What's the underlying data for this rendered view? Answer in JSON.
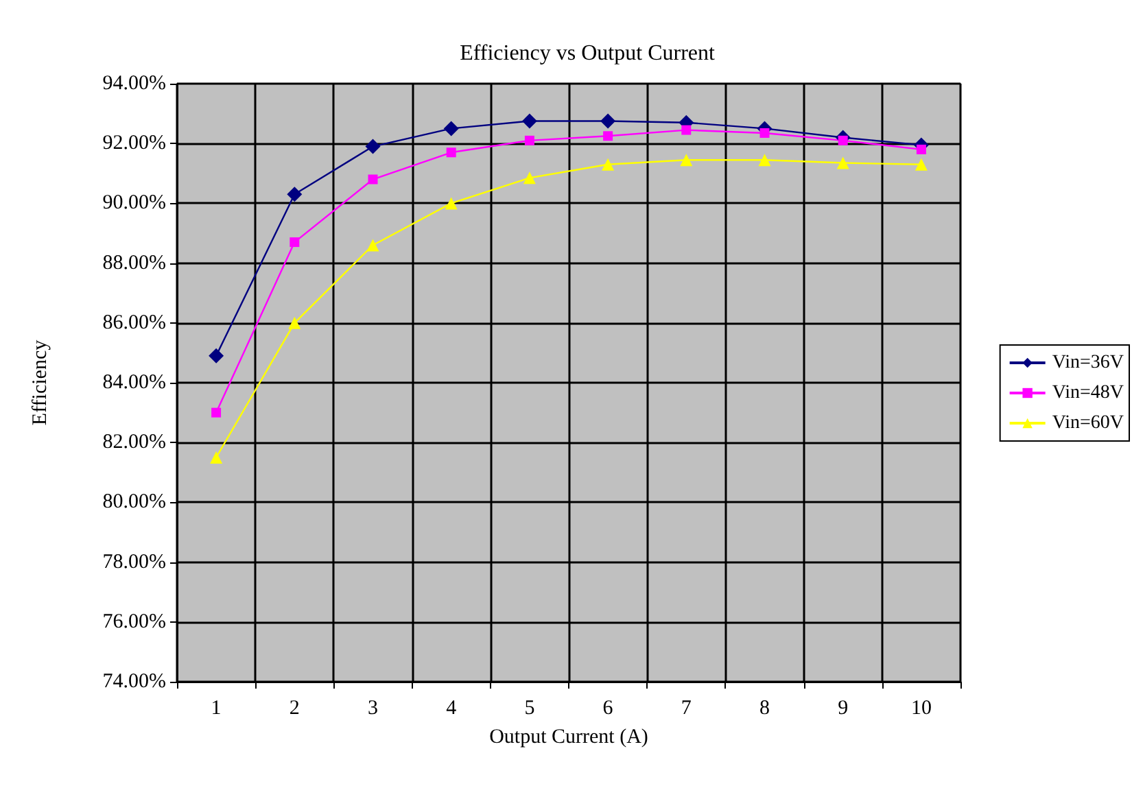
{
  "chart_data": {
    "type": "line",
    "title": "Efficiency vs Output Current",
    "xlabel": "Output Current (A)",
    "ylabel": "Efficiency",
    "categories": [
      "1",
      "2",
      "3",
      "4",
      "5",
      "6",
      "7",
      "8",
      "9",
      "10"
    ],
    "series": [
      {
        "name": "Vin=36V",
        "color": "#000080",
        "marker": "diamond",
        "values": [
          84.9,
          90.3,
          91.9,
          92.5,
          92.75,
          92.75,
          92.7,
          92.5,
          92.2,
          91.95
        ]
      },
      {
        "name": "Vin=48V",
        "color": "#ff00ff",
        "marker": "square",
        "values": [
          83.0,
          88.7,
          90.8,
          91.7,
          92.1,
          92.25,
          92.45,
          92.35,
          92.1,
          91.8
        ]
      },
      {
        "name": "Vin=60V",
        "color": "#ffff00",
        "marker": "triangle",
        "values": [
          81.5,
          86.0,
          88.6,
          90.0,
          90.85,
          91.3,
          91.45,
          91.45,
          91.35,
          91.3
        ]
      }
    ],
    "ylim": [
      74,
      94
    ],
    "yticks": [
      {
        "value": 74,
        "label": "74.00%"
      },
      {
        "value": 76,
        "label": "76.00%"
      },
      {
        "value": 78,
        "label": "78.00%"
      },
      {
        "value": 80,
        "label": "80.00%"
      },
      {
        "value": 82,
        "label": "82.00%"
      },
      {
        "value": 84,
        "label": "84.00%"
      },
      {
        "value": 86,
        "label": "86.00%"
      },
      {
        "value": 88,
        "label": "88.00%"
      },
      {
        "value": 90,
        "label": "90.00%"
      },
      {
        "value": 92,
        "label": "92.00%"
      },
      {
        "value": 94,
        "label": "94.00%"
      }
    ],
    "grid": true,
    "legend": "right",
    "line_style": "solid"
  }
}
